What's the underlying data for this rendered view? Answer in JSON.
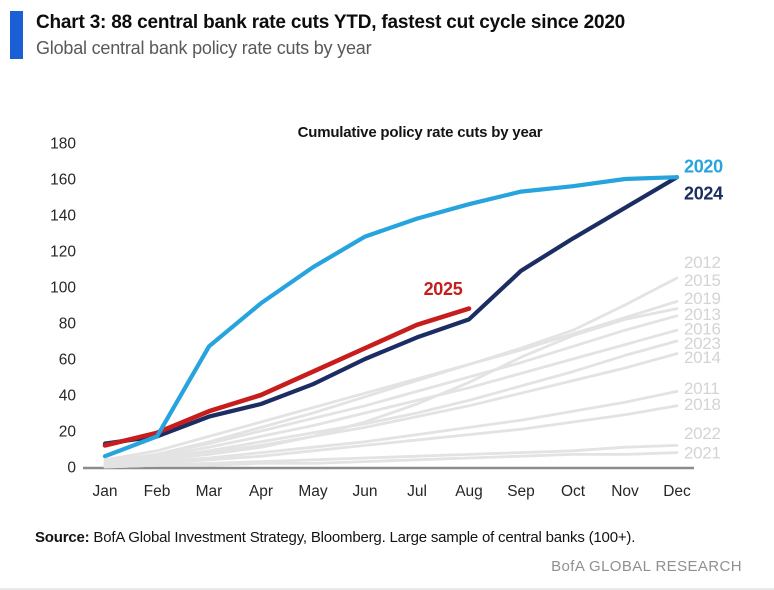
{
  "header": {
    "title": "Chart 3: 88 central bank rate cuts YTD, fastest cut cycle since 2020",
    "subtitle": "Global central bank policy rate cuts by year",
    "accent_color": "#1a5fd6"
  },
  "chart_data": {
    "type": "line",
    "title": "Cumulative policy rate cuts by year",
    "xlabel": "",
    "ylabel": "",
    "x": [
      "Jan",
      "Feb",
      "Mar",
      "Apr",
      "May",
      "Jun",
      "Jul",
      "Aug",
      "Sep",
      "Oct",
      "Nov",
      "Dec"
    ],
    "ylim": [
      0,
      180
    ],
    "ytick_step": 20,
    "grid": false,
    "legend_position": "inline end-of-line year labels, right edge",
    "axis_color": "#8c8c8c",
    "gray_label_color": "#d4d4d4",
    "series": [
      {
        "name": "2020",
        "color": "#27a4dd",
        "emphasis": true,
        "z": 3,
        "width": 4.2,
        "label_value": 167,
        "values": [
          6,
          17,
          67,
          91,
          111,
          128,
          138,
          146,
          153,
          156,
          160,
          161
        ]
      },
      {
        "name": "2024",
        "color": "#1b2d63",
        "emphasis": true,
        "z": 1,
        "width": 4.2,
        "label_value": 152,
        "values": [
          13,
          17,
          28,
          35,
          46,
          60,
          72,
          82,
          109,
          127,
          144,
          161
        ]
      },
      {
        "name": "2025",
        "color": "#c81d1d",
        "emphasis": true,
        "z": 2,
        "width": 4.6,
        "label_value": 99,
        "label_month": 6.5,
        "values": [
          12,
          19,
          31,
          40,
          53,
          66,
          79,
          88
        ]
      },
      {
        "name": "2012",
        "color": "#e3e3e3",
        "emphasis": false,
        "z": 0,
        "width": 2.8,
        "label_value": 114,
        "values": [
          3,
          7,
          14,
          22,
          30,
          39,
          48,
          57,
          66,
          76,
          90,
          105
        ]
      },
      {
        "name": "2015",
        "color": "#e3e3e3",
        "emphasis": false,
        "z": 0,
        "width": 2.8,
        "label_value": 104,
        "values": [
          4,
          9,
          17,
          25,
          33,
          41,
          49,
          57,
          65,
          74,
          83,
          92
        ]
      },
      {
        "name": "2019",
        "color": "#e3e3e3",
        "emphasis": false,
        "z": 0,
        "width": 2.8,
        "label_value": 94,
        "values": [
          2,
          4,
          7,
          11,
          17,
          25,
          35,
          47,
          61,
          73,
          82,
          88
        ]
      },
      {
        "name": "2013",
        "color": "#e3e3e3",
        "emphasis": false,
        "z": 0,
        "width": 2.8,
        "label_value": 85,
        "values": [
          3,
          7,
          13,
          20,
          27,
          34,
          42,
          50,
          58,
          67,
          76,
          84
        ]
      },
      {
        "name": "2016",
        "color": "#e3e3e3",
        "emphasis": false,
        "z": 0,
        "width": 2.8,
        "label_value": 77,
        "values": [
          2,
          6,
          11,
          17,
          23,
          30,
          37,
          44,
          52,
          60,
          68,
          76
        ]
      },
      {
        "name": "2023",
        "color": "#e3e3e3",
        "emphasis": false,
        "z": 0,
        "width": 2.8,
        "label_value": 69,
        "values": [
          2,
          5,
          9,
          14,
          19,
          24,
          30,
          37,
          45,
          53,
          62,
          70
        ]
      },
      {
        "name": "2014",
        "color": "#e3e3e3",
        "emphasis": false,
        "z": 0,
        "width": 2.8,
        "label_value": 61,
        "values": [
          1,
          4,
          8,
          12,
          17,
          22,
          28,
          34,
          41,
          48,
          55,
          63
        ]
      },
      {
        "name": "2011",
        "color": "#e3e3e3",
        "emphasis": false,
        "z": 0,
        "width": 2.8,
        "label_value": 44,
        "values": [
          1,
          3,
          5,
          8,
          11,
          14,
          18,
          22,
          26,
          31,
          36,
          42
        ]
      },
      {
        "name": "2018",
        "color": "#e3e3e3",
        "emphasis": false,
        "z": 0,
        "width": 2.8,
        "label_value": 35,
        "values": [
          1,
          2,
          4,
          6,
          9,
          12,
          15,
          18,
          21,
          25,
          29,
          34
        ]
      },
      {
        "name": "2022",
        "color": "#e3e3e3",
        "emphasis": false,
        "z": 0,
        "width": 2.8,
        "label_value": 19,
        "values": [
          0,
          1,
          2,
          3,
          4,
          5,
          6,
          7,
          8,
          9,
          11,
          12
        ]
      },
      {
        "name": "2021",
        "color": "#e3e3e3",
        "emphasis": false,
        "z": 0,
        "width": 2.8,
        "label_value": 8,
        "values": [
          0,
          1,
          1,
          2,
          2,
          3,
          4,
          5,
          6,
          7,
          7,
          8
        ]
      }
    ]
  },
  "footer": {
    "source_label": "Source:",
    "source_text": " BofA Global Investment Strategy, Bloomberg. Large sample of central banks (100+).",
    "brand": "BofA GLOBAL RESEARCH"
  }
}
